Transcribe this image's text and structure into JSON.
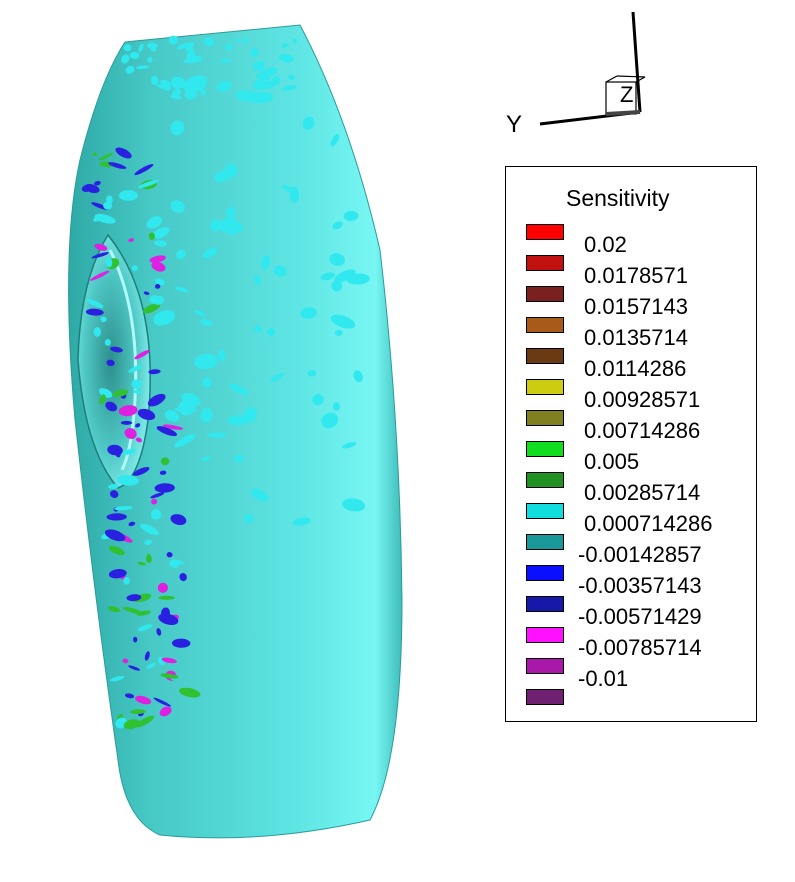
{
  "legend": {
    "title": "Sensitivity",
    "bands": [
      {
        "color": "#ff0000"
      },
      {
        "color": "#c01010"
      },
      {
        "color": "#7a2020"
      },
      {
        "color": "#a85a18"
      },
      {
        "color": "#6a3a12"
      },
      {
        "color": "#cccc10"
      },
      {
        "color": "#808020"
      },
      {
        "color": "#10dd20"
      },
      {
        "color": "#209020"
      },
      {
        "color": "#10dede"
      },
      {
        "color": "#189898"
      },
      {
        "color": "#0a10ff"
      },
      {
        "color": "#1818a8"
      },
      {
        "color": "#ff10ff"
      },
      {
        "color": "#aa18aa"
      },
      {
        "color": "#702070"
      }
    ],
    "levels": [
      "0.02",
      "0.0178571",
      "0.0157143",
      "0.0135714",
      "0.0114286",
      "0.00928571",
      "0.00714286",
      "0.005",
      "0.00285714",
      "0.000714286",
      "-0.00142857",
      "-0.00357143",
      "-0.00571429",
      "-0.00785714",
      "-0.01"
    ]
  },
  "axes": {
    "y_label": "Y",
    "z_label": "Z"
  },
  "colors": {
    "body_base": "#45d4d0",
    "body_highlight": "#6ff4f2",
    "body_shadow": "#2aa5a2",
    "patch_cyan": "#30e8ee",
    "patch_blue": "#2a20e0",
    "patch_magenta": "#e020e0",
    "patch_green": "#30c030"
  }
}
